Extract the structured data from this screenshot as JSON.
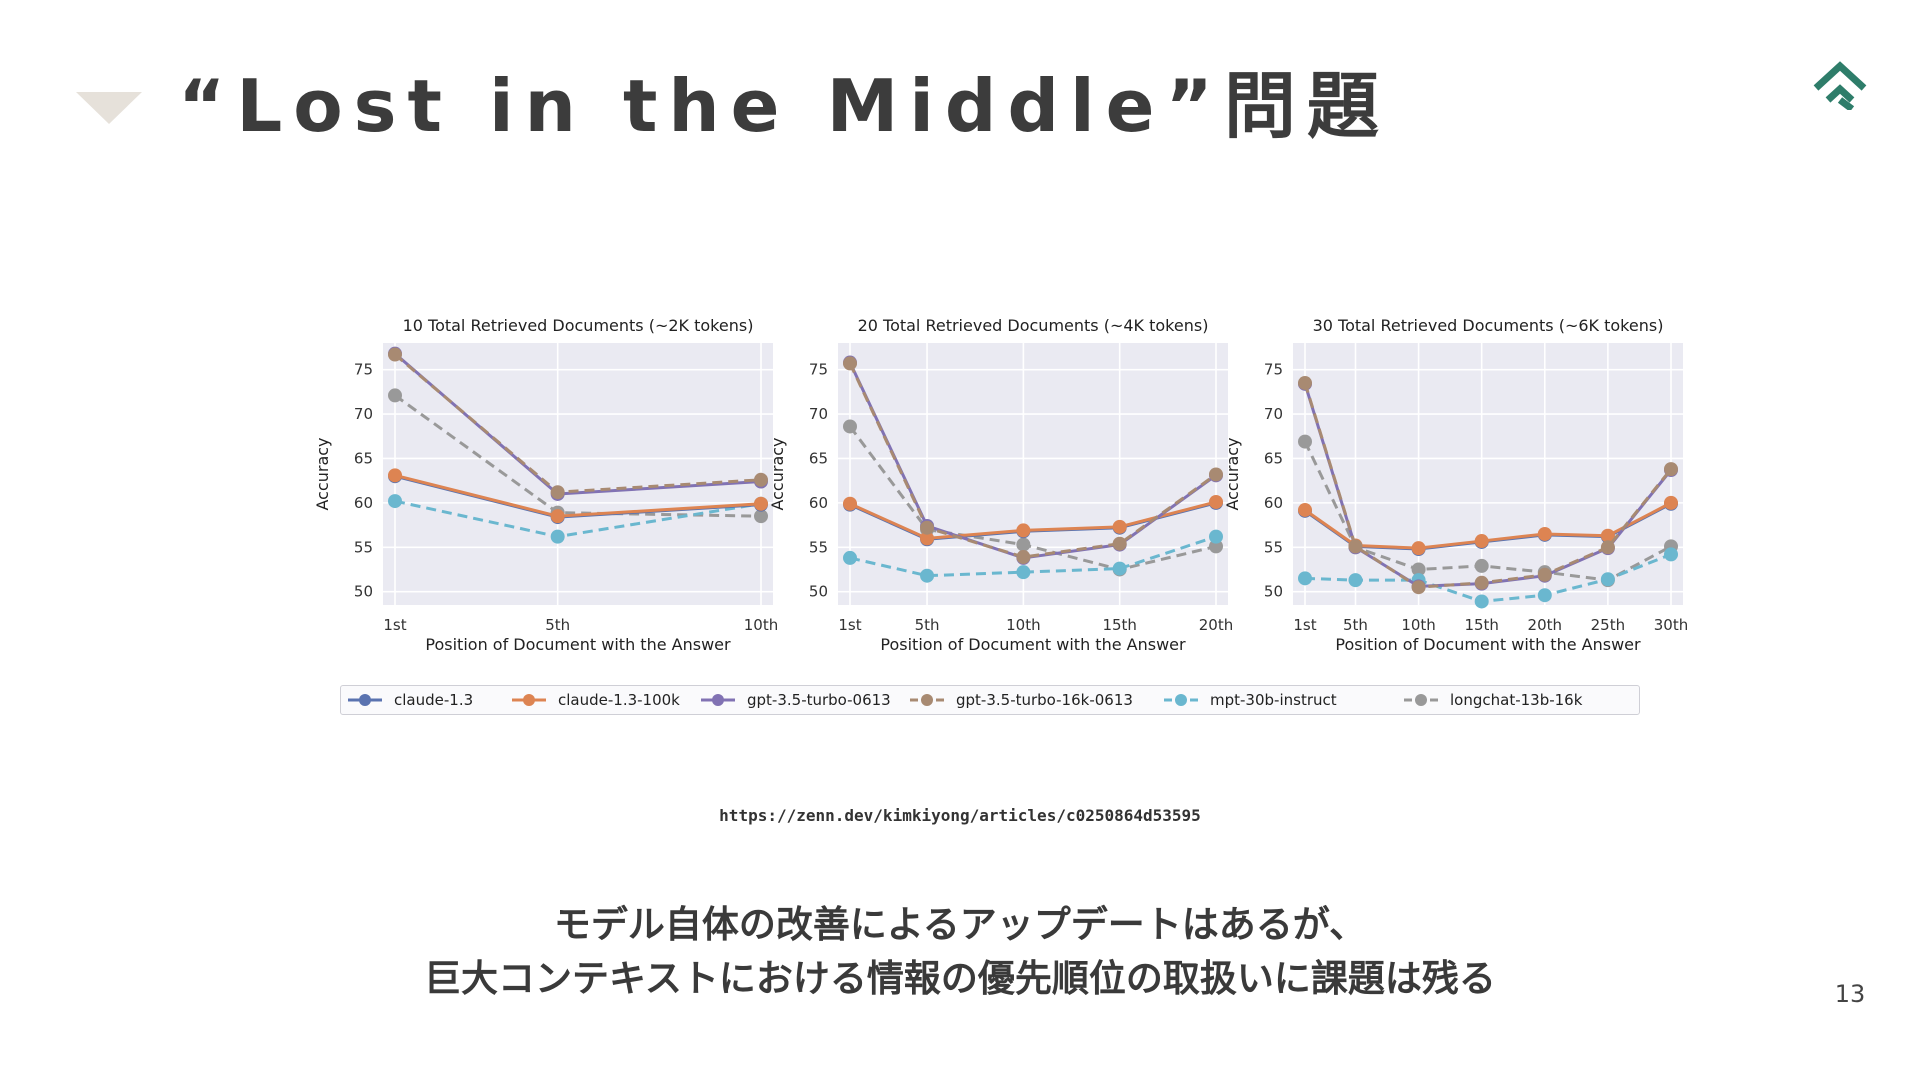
{
  "slide": {
    "title": "“Lost in the Middle”問題",
    "source_url": "https://zenn.dev/kimkiyong/articles/c0250864d53595",
    "caption_line1": "モデル自体の改善によるアップデートはあるが、",
    "caption_line2": "巨大コンテキストにおける情報の優先順位の取扱いに課題は残る",
    "page_number": "13",
    "accent_color": "#2e7d6a"
  },
  "chart_data": {
    "type": "line",
    "ylabel": "Accuracy",
    "xlabel": "Position of Document with the Answer",
    "ylim": [
      48.5,
      78
    ],
    "yticks": [
      50,
      55,
      60,
      65,
      70,
      75
    ],
    "grid": true,
    "legend_position": "bottom",
    "series_styles": [
      {
        "name": "claude-1.3",
        "color": "#5a73b0",
        "dashed": false
      },
      {
        "name": "claude-1.3-100k",
        "color": "#dd8452",
        "dashed": false
      },
      {
        "name": "gpt-3.5-turbo-0613",
        "color": "#8172b3",
        "dashed": false
      },
      {
        "name": "gpt-3.5-turbo-16k-0613",
        "color": "#a88a72",
        "dashed": true
      },
      {
        "name": "mpt-30b-instruct",
        "color": "#6ab7cf",
        "dashed": true
      },
      {
        "name": "longchat-13b-16k",
        "color": "#999999",
        "dashed": true
      }
    ],
    "panels": [
      {
        "title": "10 Total Retrieved Documents (~2K tokens)",
        "x": [
          1,
          5,
          10
        ],
        "xmax": 10,
        "xticks": [
          "1st",
          "5th",
          "10th"
        ],
        "series": [
          {
            "name": "claude-1.3",
            "values": [
              63.0,
              58.4,
              59.8
            ]
          },
          {
            "name": "claude-1.3-100k",
            "values": [
              63.1,
              58.5,
              59.9
            ]
          },
          {
            "name": "gpt-3.5-turbo-0613",
            "values": [
              76.8,
              61.0,
              62.4
            ]
          },
          {
            "name": "gpt-3.5-turbo-16k-0613",
            "values": [
              76.7,
              61.2,
              62.6
            ]
          },
          {
            "name": "mpt-30b-instruct",
            "values": [
              60.2,
              56.2,
              59.9
            ]
          },
          {
            "name": "longchat-13b-16k",
            "values": [
              72.1,
              58.9,
              58.5
            ]
          }
        ]
      },
      {
        "title": "20 Total Retrieved Documents (~4K tokens)",
        "x": [
          1,
          5,
          10,
          15,
          20
        ],
        "xmax": 20,
        "xticks": [
          "1st",
          "5th",
          "10th",
          "15th",
          "20th"
        ],
        "series": [
          {
            "name": "claude-1.3",
            "values": [
              59.8,
              55.9,
              56.8,
              57.2,
              60.0
            ]
          },
          {
            "name": "claude-1.3-100k",
            "values": [
              59.9,
              56.0,
              56.9,
              57.3,
              60.1
            ]
          },
          {
            "name": "gpt-3.5-turbo-0613",
            "values": [
              75.8,
              57.4,
              53.8,
              55.3,
              63.1
            ]
          },
          {
            "name": "gpt-3.5-turbo-16k-0613",
            "values": [
              75.7,
              57.2,
              53.9,
              55.4,
              63.2
            ]
          },
          {
            "name": "mpt-30b-instruct",
            "values": [
              53.8,
              51.8,
              52.2,
              52.6,
              56.2
            ]
          },
          {
            "name": "longchat-13b-16k",
            "values": [
              68.6,
              57.0,
              55.3,
              52.5,
              55.1
            ]
          }
        ]
      },
      {
        "title": "30 Total Retrieved Documents (~6K tokens)",
        "x": [
          1,
          5,
          10,
          15,
          20,
          25,
          30
        ],
        "xmax": 30,
        "xticks": [
          "1st",
          "5th",
          "10th",
          "15th",
          "20th",
          "25th",
          "30th"
        ],
        "series": [
          {
            "name": "claude-1.3",
            "values": [
              59.1,
              55.1,
              54.8,
              55.6,
              56.4,
              56.2,
              59.9
            ]
          },
          {
            "name": "claude-1.3-100k",
            "values": [
              59.2,
              55.2,
              54.9,
              55.7,
              56.5,
              56.3,
              60.0
            ]
          },
          {
            "name": "gpt-3.5-turbo-0613",
            "values": [
              73.4,
              55.0,
              50.6,
              50.9,
              51.8,
              54.9,
              63.7
            ]
          },
          {
            "name": "gpt-3.5-turbo-16k-0613",
            "values": [
              73.5,
              55.1,
              50.5,
              51.0,
              51.9,
              55.0,
              63.8
            ]
          },
          {
            "name": "mpt-30b-instruct",
            "values": [
              51.5,
              51.3,
              51.3,
              48.9,
              49.6,
              51.4,
              54.2
            ]
          },
          {
            "name": "longchat-13b-16k",
            "values": [
              66.9,
              55.0,
              52.5,
              52.9,
              52.2,
              51.3,
              55.1
            ]
          }
        ]
      }
    ]
  }
}
